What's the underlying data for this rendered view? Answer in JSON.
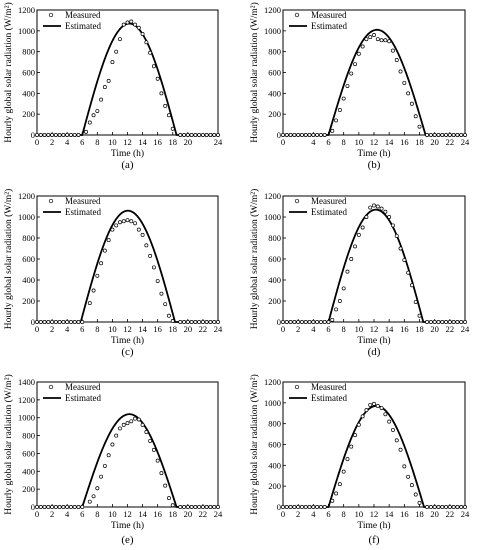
{
  "chart_data": [
    {
      "panel_label": "(a)",
      "type": "line",
      "xlabel": "Time (h)",
      "ylabel": "Hourly global solar radiation (W/m²)",
      "xlim": [
        0,
        24
      ],
      "ylim": [
        0,
        1200
      ],
      "xticks": [
        "0",
        "2",
        "4",
        "6",
        "8",
        "10",
        "12",
        "14",
        "16",
        "18",
        "20",
        "24"
      ],
      "xtick_values": [
        0,
        2,
        4,
        6,
        8,
        10,
        12,
        14,
        16,
        18,
        20,
        24
      ],
      "yticks": [
        "0",
        "200",
        "400",
        "600",
        "800",
        "1000",
        "1200"
      ],
      "ytick_values": [
        0,
        200,
        400,
        600,
        800,
        1000,
        1200
      ],
      "legend": {
        "position": "top-left",
        "entries": [
          "Measured",
          "Estimated"
        ]
      },
      "series": [
        {
          "name": "Measured",
          "style": "markers",
          "sunrise": 6.0,
          "sunset": 18.8,
          "x": [
            6.5,
            7,
            7.5,
            8,
            8.5,
            9,
            9.5,
            10,
            10.5,
            11,
            11.5,
            12,
            12.5,
            13,
            13.5,
            14,
            14.5,
            15,
            15.5,
            16,
            16.5,
            17,
            17.5,
            18
          ],
          "y": [
            30,
            120,
            190,
            230,
            340,
            460,
            520,
            700,
            800,
            920,
            1060,
            1080,
            1090,
            1060,
            1030,
            970,
            890,
            790,
            660,
            540,
            400,
            280,
            190,
            60
          ]
        },
        {
          "name": "Estimated",
          "style": "line",
          "peak": 1070,
          "sunrise": 6.0,
          "sunset": 18.5
        }
      ]
    },
    {
      "panel_label": "(b)",
      "type": "line",
      "xlabel": "Time (h)",
      "ylabel": "Hourly global solar radiation (W/m²)",
      "xlim": [
        0,
        24
      ],
      "ylim": [
        0,
        1200
      ],
      "xticks": [
        "0",
        "4",
        "6",
        "8",
        "10",
        "12",
        "14",
        "16",
        "18",
        "20",
        "22",
        "24"
      ],
      "xtick_values": [
        0,
        4,
        6,
        8,
        10,
        12,
        14,
        16,
        18,
        20,
        22,
        24
      ],
      "yticks": [
        "0",
        "200",
        "400",
        "600",
        "800",
        "1000",
        "1200"
      ],
      "ytick_values": [
        0,
        200,
        400,
        600,
        800,
        1000,
        1200
      ],
      "legend": {
        "position": "top-left",
        "entries": [
          "Measured",
          "Estimated"
        ]
      },
      "series": [
        {
          "name": "Measured",
          "style": "markers",
          "sunrise": 6.0,
          "sunset": 18.8,
          "x": [
            6.5,
            7,
            7.5,
            8,
            8.5,
            9,
            9.5,
            10,
            10.5,
            11,
            11.5,
            12,
            12.5,
            13,
            13.5,
            14,
            14.5,
            15,
            15.5,
            16,
            16.5,
            17,
            17.5,
            18
          ],
          "y": [
            40,
            140,
            240,
            350,
            470,
            590,
            680,
            780,
            850,
            920,
            940,
            960,
            920,
            910,
            910,
            900,
            810,
            720,
            610,
            500,
            400,
            300,
            180,
            80
          ]
        },
        {
          "name": "Estimated",
          "style": "line",
          "peak": 1010,
          "sunrise": 6.0,
          "sunset": 18.8
        }
      ]
    },
    {
      "panel_label": "(c)",
      "type": "line",
      "xlabel": "Time (h)",
      "ylabel": "Hourly global solar radiation (W/m²)",
      "xlim": [
        0,
        24
      ],
      "ylim": [
        0,
        1200
      ],
      "xticks": [
        "0",
        "2",
        "4",
        "6",
        "8",
        "10",
        "12",
        "14",
        "16",
        "18",
        "20",
        "22",
        "24"
      ],
      "xtick_values": [
        0,
        2,
        4,
        6,
        8,
        10,
        12,
        14,
        16,
        18,
        20,
        22,
        24
      ],
      "yticks": [
        "0",
        "200",
        "400",
        "600",
        "800",
        "1000",
        "1200"
      ],
      "ytick_values": [
        0,
        200,
        400,
        600,
        800,
        1000,
        1200
      ],
      "legend": {
        "position": "top-left",
        "entries": [
          "Measured",
          "Estimated"
        ]
      },
      "series": [
        {
          "name": "Measured",
          "style": "markers",
          "sunrise": 6.5,
          "sunset": 18.5,
          "x": [
            7,
            7.5,
            8,
            8.5,
            9,
            9.5,
            10,
            10.5,
            11,
            11.5,
            12,
            12.5,
            13,
            13.5,
            14,
            14.5,
            15,
            15.5,
            16,
            16.5,
            17,
            17.5,
            18
          ],
          "y": [
            180,
            300,
            440,
            560,
            680,
            780,
            880,
            920,
            950,
            960,
            970,
            960,
            940,
            880,
            830,
            730,
            630,
            520,
            390,
            270,
            170,
            60,
            10
          ]
        },
        {
          "name": "Estimated",
          "style": "line",
          "peak": 1060,
          "sunrise": 5.8,
          "sunset": 18.3
        }
      ]
    },
    {
      "panel_label": "(d)",
      "type": "line",
      "xlabel": "Time (h)",
      "ylabel": "Hourly global solar radiation (W/m²)",
      "xlim": [
        0,
        24
      ],
      "ylim": [
        0,
        1200
      ],
      "xticks": [
        "0",
        "2",
        "4",
        "6",
        "8",
        "10",
        "12",
        "14",
        "16",
        "18",
        "20",
        "22",
        "24"
      ],
      "xtick_values": [
        0,
        2,
        4,
        6,
        8,
        10,
        12,
        14,
        16,
        18,
        20,
        22,
        24
      ],
      "yticks": [
        "0",
        "200",
        "400",
        "600",
        "800",
        "1000",
        "1200"
      ],
      "ytick_values": [
        0,
        200,
        400,
        600,
        800,
        1000,
        1200
      ],
      "legend": {
        "position": "top-left",
        "entries": [
          "Measured",
          "Estimated"
        ]
      },
      "series": [
        {
          "name": "Measured",
          "style": "markers",
          "sunrise": 6.2,
          "sunset": 18.8,
          "x": [
            6.5,
            7,
            7.5,
            8,
            8.5,
            9,
            9.5,
            10,
            10.5,
            11,
            11.5,
            12,
            12.5,
            13,
            13.5,
            14,
            14.5,
            15,
            15.5,
            16,
            16.5,
            17,
            17.5,
            18
          ],
          "y": [
            20,
            120,
            200,
            320,
            480,
            600,
            720,
            830,
            900,
            1000,
            1090,
            1110,
            1100,
            1080,
            1050,
            1000,
            920,
            820,
            700,
            590,
            470,
            350,
            190,
            60
          ]
        },
        {
          "name": "Estimated",
          "style": "line",
          "peak": 1070,
          "sunrise": 6.0,
          "sunset": 18.5
        }
      ]
    },
    {
      "panel_label": "(e)",
      "type": "line",
      "xlabel": "Time (h)",
      "ylabel": "Hourly global solar radiation (W/m²)",
      "xlim": [
        0,
        24
      ],
      "ylim": [
        0,
        1400
      ],
      "xticks": [
        "0",
        "2",
        "4",
        "6",
        "8",
        "10",
        "12",
        "14",
        "16",
        "18",
        "20",
        "22",
        "24"
      ],
      "xtick_values": [
        0,
        2,
        4,
        6,
        8,
        10,
        12,
        14,
        16,
        18,
        20,
        22,
        24
      ],
      "yticks": [
        "0",
        "200",
        "400",
        "600",
        "800",
        "1000",
        "1200",
        "1400"
      ],
      "ytick_values": [
        0,
        200,
        400,
        600,
        800,
        1000,
        1200,
        1400
      ],
      "legend": {
        "position": "top-left",
        "entries": [
          "Measured",
          "Estimated"
        ]
      },
      "series": [
        {
          "name": "Measured",
          "style": "markers",
          "sunrise": 6.5,
          "sunset": 18.5,
          "x": [
            7,
            7.5,
            8,
            8.5,
            9,
            9.5,
            10,
            10.5,
            11,
            11.5,
            12,
            12.5,
            13,
            13.5,
            14,
            14.5,
            15,
            15.5,
            16,
            16.5,
            17,
            17.5,
            18
          ],
          "y": [
            60,
            120,
            210,
            340,
            460,
            580,
            700,
            800,
            880,
            920,
            940,
            960,
            990,
            980,
            920,
            840,
            740,
            640,
            520,
            380,
            240,
            100,
            20
          ]
        },
        {
          "name": "Estimated",
          "style": "line",
          "peak": 1040,
          "sunrise": 6.0,
          "sunset": 18.5
        }
      ]
    },
    {
      "panel_label": "(f)",
      "type": "line",
      "xlabel": "Time (h)",
      "ylabel": "Hourly global solar radiation (W/m²)",
      "xlim": [
        0,
        24
      ],
      "ylim": [
        0,
        1200
      ],
      "xticks": [
        "0",
        "2",
        "4",
        "6",
        "8",
        "10",
        "12",
        "14",
        "16",
        "18",
        "20",
        "22",
        "24"
      ],
      "xtick_values": [
        0,
        2,
        4,
        6,
        8,
        10,
        12,
        14,
        16,
        18,
        20,
        22,
        24
      ],
      "yticks": [
        "0",
        "200",
        "400",
        "600",
        "800",
        "1000",
        "1200"
      ],
      "ytick_values": [
        0,
        200,
        400,
        600,
        800,
        1000,
        1200
      ],
      "legend": {
        "position": "top-left",
        "entries": [
          "Measured",
          "Estimated"
        ]
      },
      "series": [
        {
          "name": "Measured",
          "style": "markers",
          "sunrise": 6.0,
          "sunset": 18.8,
          "x": [
            6.5,
            7,
            7.5,
            8,
            8.5,
            9,
            9.5,
            10,
            10.5,
            11,
            11.5,
            12,
            12.5,
            13,
            13.5,
            14,
            14.5,
            15,
            15.5,
            16,
            16.5,
            17,
            17.5,
            18
          ],
          "y": [
            60,
            130,
            220,
            340,
            460,
            580,
            690,
            790,
            870,
            930,
            980,
            990,
            970,
            950,
            890,
            820,
            740,
            640,
            550,
            390,
            290,
            210,
            120,
            40
          ]
        },
        {
          "name": "Estimated",
          "style": "line",
          "peak": 970,
          "sunrise": 6.0,
          "sunset": 18.6
        }
      ]
    }
  ]
}
